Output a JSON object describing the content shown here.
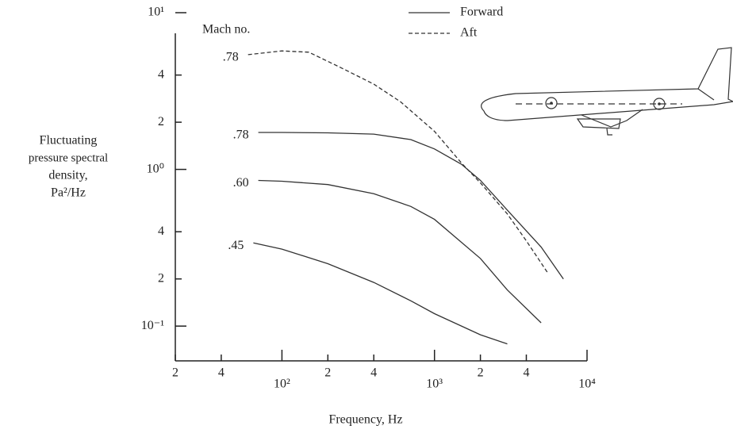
{
  "chart_data": {
    "type": "line",
    "log_x": true,
    "log_y": true,
    "xlabel": "Frequency, Hz",
    "ylabel": [
      "Fluctuating",
      "pressure spectral",
      "density,",
      "Pa²/Hz"
    ],
    "annotation": "Mach no.",
    "xlim": [
      20,
      10000
    ],
    "ylim": [
      0.06,
      10
    ],
    "xticks": [
      {
        "value": 20,
        "label": "2"
      },
      {
        "value": 40,
        "label": "4"
      },
      {
        "value": 100,
        "label": "10²"
      },
      {
        "value": 200,
        "label": "2"
      },
      {
        "value": 400,
        "label": "4"
      },
      {
        "value": 1000,
        "label": "10³"
      },
      {
        "value": 2000,
        "label": "2"
      },
      {
        "value": 4000,
        "label": "4"
      },
      {
        "value": 10000,
        "label": "10⁴"
      }
    ],
    "yticks": [
      {
        "value": 10,
        "label": "10¹"
      },
      4,
      2,
      {
        "value": 1,
        "label": "10⁰"
      },
      {
        "value": 0.4,
        "label": "4"
      },
      {
        "value": 0.2,
        "label": "2"
      },
      {
        "value": 0.1,
        "label": "10⁻¹"
      }
    ],
    "legend": [
      {
        "name": "Forward",
        "dashed": false
      },
      {
        "name": "Aft",
        "dashed": true
      }
    ],
    "color": "#333333",
    "series": [
      {
        "label": ".78",
        "dashed": true,
        "x": [
          60,
          100,
          150,
          250,
          400,
          600,
          1000,
          1500,
          2000,
          3000,
          4000,
          5500
        ],
        "values": [
          5.4,
          5.7,
          5.6,
          4.4,
          3.5,
          2.7,
          1.75,
          1.1,
          0.82,
          0.52,
          0.35,
          0.22
        ]
      },
      {
        "label": ".78",
        "dashed": false,
        "x": [
          70,
          100,
          200,
          400,
          700,
          1000,
          1500,
          2000,
          3000,
          5000,
          7000
        ],
        "values": [
          1.72,
          1.72,
          1.71,
          1.68,
          1.55,
          1.35,
          1.08,
          0.85,
          0.55,
          0.32,
          0.2
        ]
      },
      {
        "label": ".60",
        "dashed": false,
        "x": [
          70,
          100,
          200,
          400,
          700,
          1000,
          2000,
          3000,
          5000
        ],
        "values": [
          0.85,
          0.84,
          0.8,
          0.7,
          0.58,
          0.48,
          0.27,
          0.17,
          0.105
        ]
      },
      {
        "label": ".45",
        "dashed": false,
        "x": [
          65,
          100,
          200,
          400,
          700,
          1000,
          2000,
          3000
        ],
        "values": [
          0.34,
          0.31,
          0.25,
          0.19,
          0.145,
          0.12,
          0.088,
          0.077
        ]
      }
    ]
  }
}
